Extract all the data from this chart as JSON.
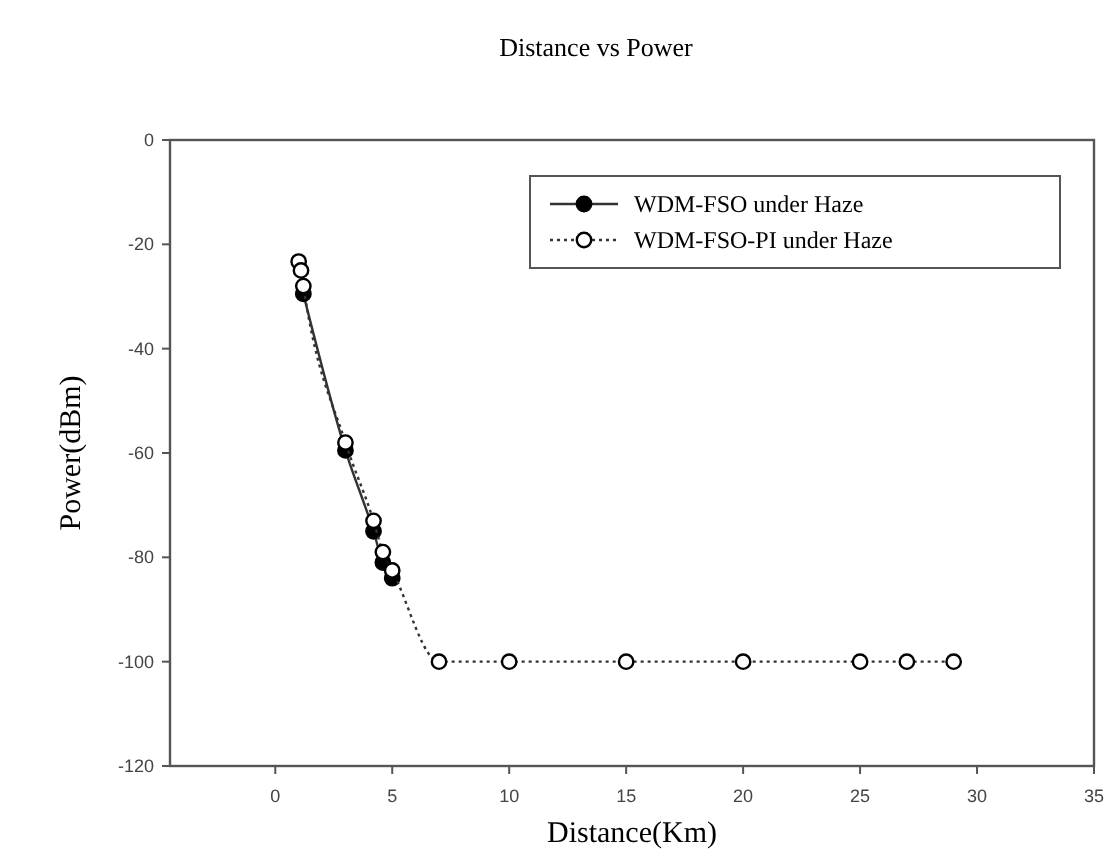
{
  "chart_data": {
    "type": "line",
    "title": "Distance vs Power",
    "xlabel": "Distance(Km)",
    "ylabel": "Power(dBm)",
    "xlim": [
      -4.5,
      35
    ],
    "xticks": [
      0,
      5,
      10,
      15,
      20,
      25,
      30,
      35
    ],
    "ylim": [
      -120,
      0
    ],
    "yticks": [
      -120,
      -100,
      -80,
      -60,
      -40,
      -20,
      0
    ],
    "grid": false,
    "legend": "top right",
    "series": [
      {
        "name": "WDM-FSO under Haze",
        "color": "#000000",
        "marker": "circle",
        "line_style": "solid",
        "x": [
          1.2,
          3,
          4.2,
          4.6,
          5
        ],
        "values": [
          -29.5,
          -59.5,
          -75,
          -81,
          -84
        ]
      },
      {
        "name": "WDM-FSO-PI under Haze",
        "color": "#ffffff",
        "marker": "circle",
        "line_style": "dotted",
        "x": [
          1,
          1.1,
          1.2,
          3,
          4.2,
          4.6,
          5,
          7,
          10,
          15,
          20,
          25,
          27,
          29
        ],
        "values": [
          -23.3,
          -25,
          -28,
          -58,
          -73,
          -79,
          -82.5,
          -100,
          -100,
          -100,
          -100,
          -100,
          -100,
          -100
        ]
      }
    ]
  }
}
